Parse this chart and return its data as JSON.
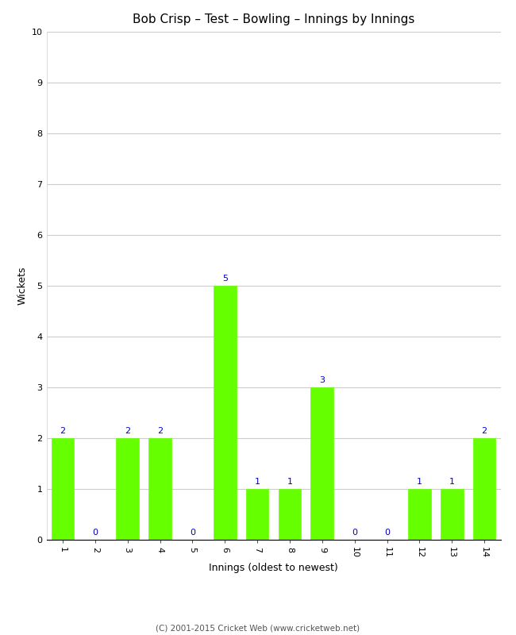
{
  "title": "Bob Crisp – Test – Bowling – Innings by Innings",
  "xlabel": "Innings (oldest to newest)",
  "ylabel": "Wickets",
  "categories": [
    "1",
    "2",
    "3",
    "4",
    "5",
    "6",
    "7",
    "8",
    "9",
    "10",
    "11",
    "12",
    "13",
    "14"
  ],
  "values": [
    2,
    0,
    2,
    2,
    0,
    5,
    1,
    1,
    3,
    0,
    0,
    1,
    1,
    2
  ],
  "bar_color": "#66ff00",
  "bar_edge_color": "#66ff00",
  "label_color": "#0000cc",
  "background_color": "#ffffff",
  "ylim": [
    0,
    10
  ],
  "yticks": [
    0,
    1,
    2,
    3,
    4,
    5,
    6,
    7,
    8,
    9,
    10
  ],
  "grid_color": "#cccccc",
  "title_fontsize": 11,
  "axis_label_fontsize": 9,
  "tick_fontsize": 8,
  "label_fontsize": 8,
  "footer_text": "(C) 2001-2015 Cricket Web (www.cricketweb.net)"
}
